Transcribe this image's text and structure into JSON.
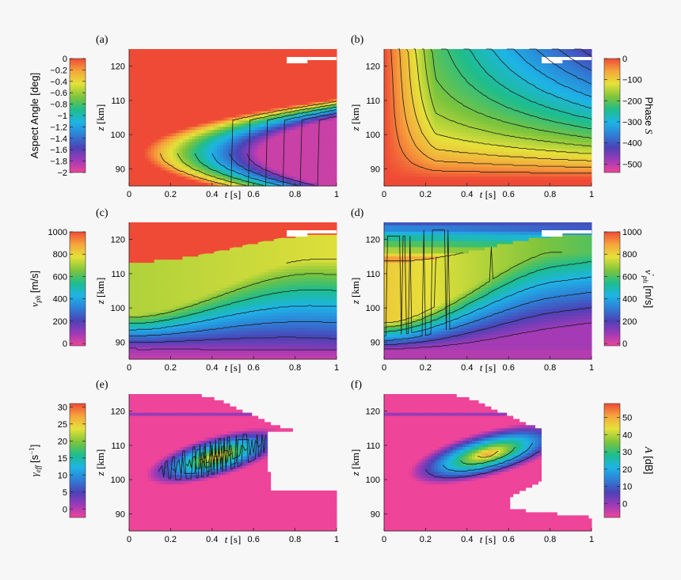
{
  "chart_data": [
    {
      "type": "heatmap",
      "panel": "(a)",
      "xlabel_italic": "t",
      "xlabel_rest": " [s]",
      "ylabel_italic": "z",
      "ylabel_rest": " [km]",
      "xlim": [
        0,
        1
      ],
      "ylim": [
        85,
        125
      ],
      "x_ticks": [
        0,
        0.2,
        0.4,
        0.6,
        0.8,
        1
      ],
      "y_ticks": [
        90,
        100,
        110,
        120
      ],
      "colorbar": {
        "label": "Aspect Angle [deg]",
        "ticks": [
          0,
          -0.2,
          -0.4,
          -0.6,
          -0.8,
          -1,
          -1.2,
          -1.4,
          -1.6,
          -1.8,
          -2
        ],
        "range": [
          -2,
          0
        ],
        "side": "left"
      }
    },
    {
      "type": "heatmap",
      "panel": "(b)",
      "xlabel_italic": "t",
      "xlabel_rest": " [s]",
      "ylabel_italic": "z",
      "ylabel_rest": " [km]",
      "xlim": [
        0,
        1
      ],
      "ylim": [
        85,
        125
      ],
      "x_ticks": [
        0,
        0.2,
        0.4,
        0.6,
        0.8,
        1
      ],
      "y_ticks": [
        90,
        100,
        110,
        120
      ],
      "colorbar": {
        "label": "Phase S",
        "ticks": [
          0,
          -100,
          -200,
          -300,
          -400,
          -500
        ],
        "range": [
          -540,
          0
        ],
        "side": "right"
      }
    },
    {
      "type": "heatmap",
      "panel": "(c)",
      "xlabel_italic": "t",
      "xlabel_rest": " [s]",
      "ylabel_italic": "z",
      "ylabel_rest": " [km]",
      "xlim": [
        0,
        1
      ],
      "ylim": [
        85,
        125
      ],
      "x_ticks": [
        0,
        0.2,
        0.4,
        0.6,
        0.8,
        1
      ],
      "y_ticks": [
        90,
        100,
        110,
        120
      ],
      "colorbar": {
        "label": "v_ph [m/s]",
        "ticks": [
          0,
          200,
          400,
          600,
          800,
          1000
        ],
        "range": [
          -20,
          1000
        ],
        "side": "left"
      }
    },
    {
      "type": "heatmap",
      "panel": "(d)",
      "xlabel_italic": "t",
      "xlabel_rest": " [s]",
      "ylabel_italic": "z",
      "ylabel_rest": " [km]",
      "xlim": [
        0,
        1
      ],
      "ylim": [
        85,
        125
      ],
      "x_ticks": [
        0,
        0.2,
        0.4,
        0.6,
        0.8,
        1
      ],
      "y_ticks": [
        90,
        100,
        110,
        120
      ],
      "colorbar": {
        "label": "v'_ph [m/s]",
        "ticks": [
          0,
          200,
          400,
          600,
          800,
          1000
        ],
        "range": [
          -20,
          1000
        ],
        "side": "right"
      }
    },
    {
      "type": "heatmap",
      "panel": "(e)",
      "xlabel_italic": "t",
      "xlabel_rest": " [s]",
      "ylabel_italic": "z",
      "ylabel_rest": " [km]",
      "xlim": [
        0,
        1
      ],
      "ylim": [
        85,
        125
      ],
      "x_ticks": [
        0,
        0.2,
        0.4,
        0.6,
        0.8,
        1
      ],
      "y_ticks": [
        90,
        100,
        110,
        120
      ],
      "colorbar": {
        "label": "γ_eff [s⁻¹]",
        "ticks": [
          0,
          5,
          10,
          15,
          20,
          25,
          30
        ],
        "range": [
          -2.5,
          31
        ],
        "side": "left"
      }
    },
    {
      "type": "heatmap",
      "panel": "(f)",
      "xlabel_italic": "t",
      "xlabel_rest": " [s]",
      "ylabel_italic": "z",
      "ylabel_rest": " [km]",
      "xlim": [
        0,
        1
      ],
      "ylim": [
        85,
        125
      ],
      "x_ticks": [
        0,
        0.2,
        0.4,
        0.6,
        0.8,
        1
      ],
      "y_ticks": [
        90,
        100,
        110,
        120
      ],
      "colorbar": {
        "label": "A [dB]",
        "ticks": [
          0,
          10,
          20,
          30,
          40,
          50
        ],
        "range": [
          -8,
          58
        ],
        "side": "right"
      }
    }
  ],
  "cb_texts": {
    "a": "Aspect Angle [deg]",
    "b_rest": "Phase ",
    "b_sym": "S",
    "c_sym": "v",
    "c_sub": "ph",
    "c_rest": "[m/s]",
    "d_sym": "v",
    "d_prime": "′",
    "d_sub": "ph",
    "d_rest": "[m/s]",
    "e_sym": "γ",
    "e_sub": "eff",
    "e_rest": "[s",
    "e_sup": "−1",
    "e_close": "]",
    "f_sym": "A",
    "f_rest": " [dB]"
  },
  "colors": {
    "palette": [
      "#ee4499",
      "#9c3ab8",
      "#4c42b6",
      "#2e7fd6",
      "#1eb4e6",
      "#1ebd8c",
      "#7cc43c",
      "#e6e13a",
      "#f5a53b",
      "#ef4a36"
    ],
    "background": "#f7f7f7",
    "contour": "#1a1a1a"
  }
}
